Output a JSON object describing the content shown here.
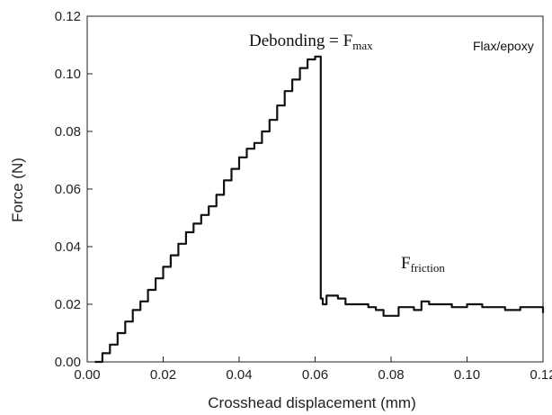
{
  "chart_data": {
    "type": "line",
    "xlabel": "Crosshead displacement (mm)",
    "ylabel": "Force (N)",
    "xlim": [
      0.0,
      0.12
    ],
    "ylim": [
      0.0,
      0.12
    ],
    "x_ticks": [
      "0.00",
      "0.02",
      "0.04",
      "0.06",
      "0.08",
      "0.10",
      "0.12"
    ],
    "y_ticks": [
      "0.00",
      "0.02",
      "0.04",
      "0.06",
      "0.08",
      "0.10",
      "0.12"
    ],
    "grid": false,
    "series": [
      {
        "color": "#111111",
        "x": [
          0.002,
          0.004,
          0.006,
          0.008,
          0.01,
          0.012,
          0.014,
          0.016,
          0.018,
          0.02,
          0.022,
          0.024,
          0.026,
          0.028,
          0.03,
          0.032,
          0.034,
          0.036,
          0.038,
          0.04,
          0.042,
          0.044,
          0.046,
          0.048,
          0.05,
          0.052,
          0.054,
          0.056,
          0.058,
          0.06,
          0.0615,
          0.0615,
          0.062,
          0.063,
          0.064,
          0.066,
          0.068,
          0.07,
          0.072,
          0.074,
          0.076,
          0.078,
          0.08,
          0.082,
          0.084,
          0.086,
          0.088,
          0.09,
          0.092,
          0.094,
          0.096,
          0.098,
          0.1,
          0.102,
          0.104,
          0.106,
          0.108,
          0.11,
          0.112,
          0.114,
          0.116,
          0.118,
          0.12
        ],
        "y": [
          0.0,
          0.003,
          0.006,
          0.01,
          0.014,
          0.018,
          0.021,
          0.025,
          0.029,
          0.033,
          0.037,
          0.041,
          0.045,
          0.048,
          0.051,
          0.054,
          0.058,
          0.063,
          0.067,
          0.071,
          0.074,
          0.076,
          0.08,
          0.084,
          0.089,
          0.094,
          0.098,
          0.102,
          0.105,
          0.106,
          0.106,
          0.022,
          0.02,
          0.023,
          0.023,
          0.022,
          0.02,
          0.02,
          0.02,
          0.019,
          0.018,
          0.016,
          0.016,
          0.019,
          0.019,
          0.018,
          0.021,
          0.02,
          0.02,
          0.02,
          0.019,
          0.019,
          0.02,
          0.02,
          0.019,
          0.019,
          0.019,
          0.018,
          0.018,
          0.019,
          0.019,
          0.019,
          0.017
        ]
      }
    ],
    "annotations": {
      "debonding_prefix": "Debonding = F",
      "debonding_sub": "max",
      "friction_prefix": "F",
      "friction_sub": "friction",
      "material": "Flax/epoxy"
    }
  }
}
